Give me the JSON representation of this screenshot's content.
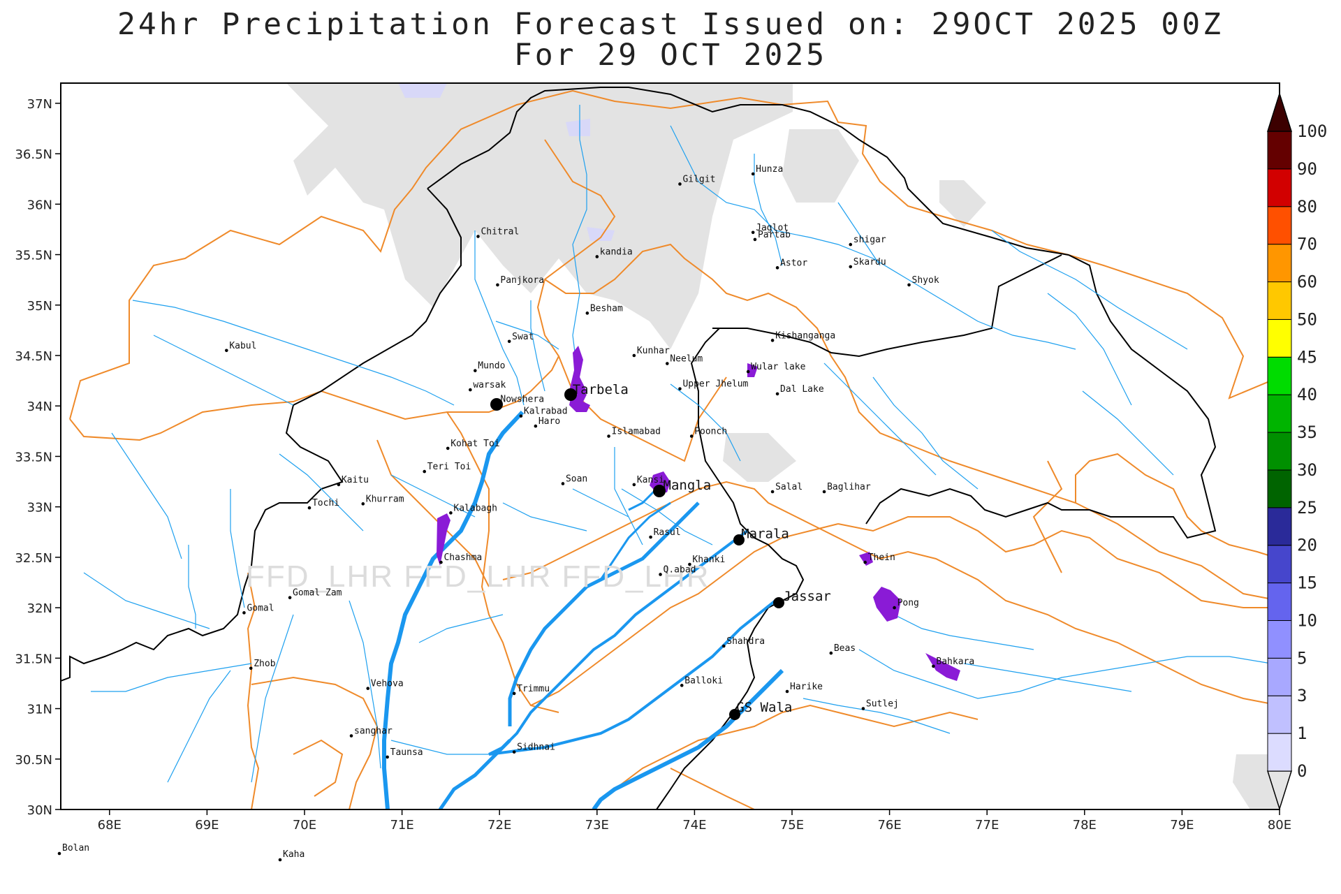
{
  "title_line1": "24hr Precipitation Forecast Issued on:  29OCT 2025 00Z",
  "title_line2": "For 29 OCT 2025",
  "watermark": "FFD_LHR FFD_LHR FFD_LHR",
  "axes": {
    "lon_ticks": [
      "68E",
      "69E",
      "70E",
      "71E",
      "72E",
      "73E",
      "74E",
      "75E",
      "76E",
      "77E",
      "78E",
      "79E",
      "80E"
    ],
    "lat_ticks": [
      "37N",
      "36.5N",
      "36N",
      "35.5N",
      "35N",
      "34.5N",
      "34N",
      "33.5N",
      "33N",
      "32.5N",
      "32N",
      "31.5N",
      "31N",
      "30.5N",
      "30N"
    ]
  },
  "colorbar": {
    "labels": [
      "0",
      "1",
      "3",
      "5",
      "10",
      "15",
      "20",
      "25",
      "30",
      "35",
      "40",
      "45",
      "50",
      "60",
      "70",
      "80",
      "90",
      "100"
    ],
    "colors": [
      "#e5e5e5",
      "#dcdcff",
      "#c0c0ff",
      "#a8a8ff",
      "#9090ff",
      "#6464ee",
      "#4646cc",
      "#2a2a99",
      "#006400",
      "#009000",
      "#00b400",
      "#00dc00",
      "#ffff00",
      "#ffc800",
      "#ff9600",
      "#ff5000",
      "#d20000",
      "#640000",
      "#3c0000"
    ]
  },
  "stations": [
    {
      "name": "Kabul",
      "lon": 69.2,
      "lat": 34.55
    },
    {
      "name": "Chitral",
      "lon": 71.78,
      "lat": 35.68
    },
    {
      "name": "Gilgit",
      "lon": 73.85,
      "lat": 36.2
    },
    {
      "name": "Hunza",
      "lon": 74.6,
      "lat": 36.3
    },
    {
      "name": "Jaglot",
      "lon": 74.6,
      "lat": 35.72
    },
    {
      "name": "Partab",
      "lon": 74.62,
      "lat": 35.65
    },
    {
      "name": "shigar",
      "lon": 75.6,
      "lat": 35.6
    },
    {
      "name": "Skardu",
      "lon": 75.6,
      "lat": 35.38
    },
    {
      "name": "Shyok",
      "lon": 76.2,
      "lat": 35.2
    },
    {
      "name": "Astor",
      "lon": 74.85,
      "lat": 35.37
    },
    {
      "name": "kandia",
      "lon": 73.0,
      "lat": 35.48
    },
    {
      "name": "Panjkora",
      "lon": 71.98,
      "lat": 35.2
    },
    {
      "name": "Besham",
      "lon": 72.9,
      "lat": 34.92
    },
    {
      "name": "Swat",
      "lon": 72.1,
      "lat": 34.64
    },
    {
      "name": "Kishanganga",
      "lon": 74.8,
      "lat": 34.65
    },
    {
      "name": "Kunhar",
      "lon": 73.38,
      "lat": 34.5
    },
    {
      "name": "Neelum",
      "lon": 73.72,
      "lat": 34.42
    },
    {
      "name": "Mundo",
      "lon": 71.75,
      "lat": 34.35
    },
    {
      "name": "Wular lake",
      "lon": 74.55,
      "lat": 34.34
    },
    {
      "name": "warsak",
      "lon": 71.7,
      "lat": 34.16
    },
    {
      "name": "Upper Jhelum",
      "lon": 73.85,
      "lat": 34.17
    },
    {
      "name": "Dal Lake",
      "lon": 74.85,
      "lat": 34.12
    },
    {
      "name": "Tarbela",
      "lon": 72.72,
      "lat": 34.1
    },
    {
      "name": "Nowshera",
      "lon": 71.98,
      "lat": 34.02
    },
    {
      "name": "Kalrabad",
      "lon": 72.22,
      "lat": 33.9
    },
    {
      "name": "Haro",
      "lon": 72.37,
      "lat": 33.8
    },
    {
      "name": "Islamabad",
      "lon": 73.12,
      "lat": 33.7
    },
    {
      "name": "Poonch",
      "lon": 73.97,
      "lat": 33.7
    },
    {
      "name": "Kohat Toi",
      "lon": 71.47,
      "lat": 33.58
    },
    {
      "name": "Teri Toi",
      "lon": 71.23,
      "lat": 33.35
    },
    {
      "name": "Soan",
      "lon": 72.65,
      "lat": 33.23
    },
    {
      "name": "Kansi",
      "lon": 73.38,
      "lat": 33.22
    },
    {
      "name": "Mangla",
      "lon": 73.65,
      "lat": 33.15
    },
    {
      "name": "Salal",
      "lon": 74.8,
      "lat": 33.15
    },
    {
      "name": "Baglihar",
      "lon": 75.33,
      "lat": 33.15
    },
    {
      "name": "Kaitu",
      "lon": 70.35,
      "lat": 33.22
    },
    {
      "name": "Khurram",
      "lon": 70.6,
      "lat": 33.03
    },
    {
      "name": "Tochi",
      "lon": 70.05,
      "lat": 32.99
    },
    {
      "name": "Kalabagh",
      "lon": 71.5,
      "lat": 32.94
    },
    {
      "name": "Rasul",
      "lon": 73.55,
      "lat": 32.7
    },
    {
      "name": "Marala",
      "lon": 74.45,
      "lat": 32.67
    },
    {
      "name": "Thein",
      "lon": 75.75,
      "lat": 32.45
    },
    {
      "name": "Chashma",
      "lon": 71.4,
      "lat": 32.45
    },
    {
      "name": "Khanki",
      "lon": 73.95,
      "lat": 32.43
    },
    {
      "name": "Q.abad",
      "lon": 73.65,
      "lat": 32.33
    },
    {
      "name": "Gomal Zam",
      "lon": 69.85,
      "lat": 32.1
    },
    {
      "name": "Gomal",
      "lon": 69.38,
      "lat": 31.95
    },
    {
      "name": "Jassar",
      "lon": 74.88,
      "lat": 32.05
    },
    {
      "name": "Pong",
      "lon": 76.05,
      "lat": 32.0
    },
    {
      "name": "Shahdra",
      "lon": 74.3,
      "lat": 31.62
    },
    {
      "name": "Beas",
      "lon": 75.4,
      "lat": 31.55
    },
    {
      "name": "Bahkara",
      "lon": 76.45,
      "lat": 31.42
    },
    {
      "name": "Zhob",
      "lon": 69.45,
      "lat": 31.4
    },
    {
      "name": "Vehova",
      "lon": 70.65,
      "lat": 31.2
    },
    {
      "name": "Balloki",
      "lon": 73.87,
      "lat": 31.23
    },
    {
      "name": "Harike",
      "lon": 74.95,
      "lat": 31.17
    },
    {
      "name": "Trimmu",
      "lon": 72.15,
      "lat": 31.15
    },
    {
      "name": "Sutlej",
      "lon": 75.73,
      "lat": 31.0
    },
    {
      "name": "GS Wala",
      "lon": 74.4,
      "lat": 30.95
    },
    {
      "name": "sanghar",
      "lon": 70.48,
      "lat": 30.73
    },
    {
      "name": "Taunsa",
      "lon": 70.85,
      "lat": 30.52
    },
    {
      "name": "Sidhnai",
      "lon": 72.15,
      "lat": 30.57
    }
  ],
  "outside_labels": [
    "Bolan",
    "Kaha"
  ]
}
